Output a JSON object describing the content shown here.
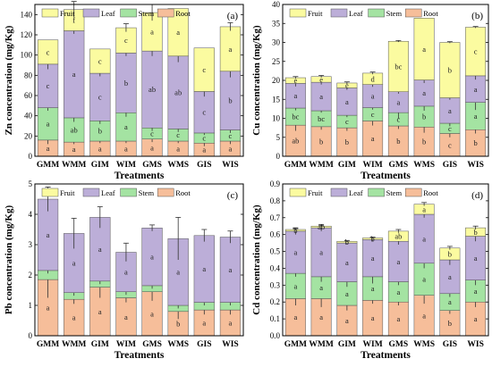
{
  "figure": {
    "segment_colors": {
      "Root": "#f6be9a",
      "Stem": "#a4e3a2",
      "Leaf": "#bcaed8",
      "Fruit": "#fbfba0"
    },
    "edge_color": "#555555"
  },
  "chart_data": [
    {
      "type": "bar",
      "stacked": true,
      "panel_label": "(a)",
      "ylabel": "Zn concentration (mg/Kg)",
      "xlabel": "Treatments",
      "ylim": [
        0,
        150
      ],
      "yticks": [
        "0",
        "20",
        "40",
        "60",
        "80",
        "100",
        "120",
        "140"
      ],
      "yticks_values": [
        0,
        20,
        40,
        60,
        80,
        100,
        120,
        140
      ],
      "legend": [
        "Fruit",
        "Leaf",
        "Stem",
        "Root"
      ],
      "legend_position": "top-left",
      "categories": [
        "GMM",
        "WMM",
        "GIM",
        "WIM",
        "GMS",
        "WMS",
        "GIS",
        "WIS"
      ],
      "series": [
        {
          "name": "Root",
          "values": [
            16,
            14,
            15,
            15,
            17,
            15,
            13,
            15
          ],
          "errors": [
            4,
            2,
            2,
            2,
            3,
            2,
            3,
            3
          ],
          "letters": [
            "a",
            "a",
            "a",
            "a",
            "a",
            "a",
            "a",
            "a"
          ]
        },
        {
          "name": "Stem",
          "values": [
            32,
            24,
            20,
            28,
            11,
            12,
            10,
            11
          ],
          "errors": [
            3,
            4,
            3,
            4,
            3,
            3,
            2,
            3
          ],
          "letters": [
            "a",
            "ab",
            "b",
            "a",
            "c",
            "c",
            "c",
            "c"
          ]
        },
        {
          "name": "Leaf",
          "values": [
            43,
            86,
            47,
            59,
            76,
            72,
            41,
            58
          ],
          "errors": [
            5,
            3,
            3,
            3,
            5,
            6,
            5,
            6
          ],
          "letters": [
            "c",
            "a",
            "c",
            "b",
            "ab",
            "ab",
            "c",
            "b"
          ]
        },
        {
          "name": "Fruit",
          "values": [
            24,
            21,
            24,
            25,
            38,
            47,
            43,
            44
          ],
          "errors": [
            0,
            8,
            0,
            4,
            8,
            0,
            0,
            4
          ],
          "letters": [
            "c",
            "f",
            "c",
            "c",
            "a",
            "a",
            "c",
            "a"
          ]
        }
      ]
    },
    {
      "type": "bar",
      "stacked": true,
      "panel_label": "(b)",
      "ylabel": "Cu concentration (mg/Kg)",
      "xlabel": "Treatments",
      "ylim": [
        0,
        40
      ],
      "yticks": [
        "0",
        "5",
        "10",
        "15",
        "20",
        "25",
        "30",
        "35",
        "40"
      ],
      "yticks_values": [
        0,
        5,
        10,
        15,
        20,
        25,
        30,
        35,
        40
      ],
      "legend": [
        "Fruit",
        "Leaf",
        "Stem",
        "Root"
      ],
      "legend_position": "top-left",
      "categories": [
        "GMM",
        "WMM",
        "GIM",
        "WIM",
        "GMS",
        "WMS",
        "GIS",
        "WIS"
      ],
      "series": [
        {
          "name": "Root",
          "values": [
            8.2,
            7.8,
            7.5,
            9.3,
            8.0,
            7.7,
            6.0,
            7.0
          ],
          "errors": [
            1.5,
            0.8,
            0.8,
            1.2,
            0.8,
            1.5,
            1.0,
            1.0
          ],
          "letters": [
            "ab",
            "b",
            "b",
            "a",
            "b",
            "b",
            "c",
            "b"
          ]
        },
        {
          "name": "Stem",
          "values": [
            4.5,
            4.2,
            3.3,
            3.5,
            3.5,
            5.5,
            2.7,
            7.2
          ],
          "errors": [
            0.6,
            0.5,
            0.5,
            0.5,
            1.5,
            1.2,
            0.8,
            2.0
          ],
          "letters": [
            "bc",
            "bc",
            "c",
            "c",
            "c",
            "b",
            "c",
            "a"
          ]
        },
        {
          "name": "Leaf",
          "values": [
            6.5,
            7.5,
            7.2,
            6.1,
            5.5,
            6.9,
            6.7,
            7.0
          ],
          "errors": [
            0.8,
            0.6,
            0.5,
            0.6,
            0.5,
            0.8,
            0.5,
            1.0
          ],
          "letters": [
            "a",
            "a",
            "a",
            "a",
            "a",
            "a",
            "a",
            "a"
          ]
        },
        {
          "name": "Fruit",
          "values": [
            1.5,
            1.5,
            1.3,
            3.0,
            13.3,
            16.3,
            14.6,
            12.8
          ],
          "errors": [
            0.3,
            0.3,
            0.3,
            0.3,
            0.2,
            0,
            0.2,
            0.2
          ],
          "letters": [
            "e",
            "e",
            "e",
            "d",
            "bc",
            "a",
            "b",
            "c"
          ]
        }
      ]
    },
    {
      "type": "bar",
      "stacked": true,
      "panel_label": "(c)",
      "ylabel": "Pb concentration (mg/Kg)",
      "xlabel": "Treatments",
      "ylim": [
        0,
        5
      ],
      "yticks": [
        "0",
        "1",
        "2",
        "3",
        "4",
        "5"
      ],
      "yticks_values": [
        0,
        1,
        2,
        3,
        4,
        5
      ],
      "legend": [
        "Fruit",
        "Leaf",
        "Stem",
        "Root"
      ],
      "legend_position": "top-left",
      "categories": [
        "GMM",
        "WMM",
        "GIM",
        "WIM",
        "GMS",
        "WMS",
        "GIS",
        "WIS"
      ],
      "series": [
        {
          "name": "Root",
          "values": [
            1.85,
            1.2,
            1.6,
            1.25,
            1.45,
            0.8,
            0.85,
            0.85
          ],
          "errors": [
            0.6,
            0.15,
            0.35,
            0.15,
            0.3,
            0.25,
            0.15,
            0.15
          ],
          "letters": [
            "a",
            "a",
            "a",
            "a",
            "a",
            "b",
            "a",
            "a"
          ]
        },
        {
          "name": "Stem",
          "values": [
            0.3,
            0.22,
            0.2,
            0.2,
            0.2,
            0.2,
            0.25,
            0.25
          ],
          "errors": [
            0.1,
            0.1,
            0.1,
            0.1,
            0.1,
            0.1,
            0.1,
            0.1
          ],
          "letters": [
            "",
            "",
            "",
            "",
            "",
            "",
            "",
            ""
          ]
        },
        {
          "name": "Leaf",
          "values": [
            2.35,
            1.95,
            2.1,
            1.3,
            1.9,
            2.2,
            2.2,
            2.15
          ],
          "errors": [
            0.4,
            0.5,
            0.35,
            0.3,
            0.1,
            0.7,
            0.2,
            0.2
          ],
          "letters": [
            "a",
            "a",
            "a",
            "a",
            "a",
            "a",
            "a",
            "a"
          ]
        }
      ]
    },
    {
      "type": "bar",
      "stacked": true,
      "panel_label": "(d)",
      "ylabel": "Cd concentration (mg/Kg)",
      "xlabel": "Treatments",
      "ylim": [
        0,
        0.9
      ],
      "yticks": [
        "0.0",
        "0.1",
        "0.2",
        "0.3",
        "0.4",
        "0.5",
        "0.6",
        "0.7",
        "0.8",
        "0.9"
      ],
      "yticks_values": [
        0,
        0.1,
        0.2,
        0.3,
        0.4,
        0.5,
        0.6,
        0.7,
        0.8,
        0.9
      ],
      "legend": [
        "Fruit",
        "Leaf",
        "Stem",
        "Root"
      ],
      "legend_position": "top-left",
      "categories": [
        "GMM",
        "WMM",
        "GIM",
        "WIM",
        "GMS",
        "WMS",
        "GIS",
        "WIS"
      ],
      "series": [
        {
          "name": "Root",
          "values": [
            0.22,
            0.22,
            0.18,
            0.21,
            0.2,
            0.24,
            0.15,
            0.2
          ],
          "errors": [
            0.04,
            0.05,
            0.03,
            0.02,
            0.02,
            0.05,
            0.02,
            0.03
          ],
          "letters": [
            "a",
            "a",
            "a",
            "a",
            "a",
            "a",
            "b",
            "a"
          ]
        },
        {
          "name": "Stem",
          "values": [
            0.15,
            0.13,
            0.14,
            0.14,
            0.12,
            0.19,
            0.1,
            0.13
          ],
          "errors": [
            0.02,
            0.03,
            0.03,
            0.04,
            0.02,
            0.03,
            0.02,
            0.03
          ],
          "letters": [
            "a",
            "a",
            "a",
            "a",
            "a",
            "a",
            "a",
            "a"
          ]
        },
        {
          "name": "Leaf",
          "values": [
            0.25,
            0.29,
            0.23,
            0.22,
            0.24,
            0.29,
            0.2,
            0.26
          ],
          "errors": [
            0.02,
            0.02,
            0.01,
            0.01,
            0.02,
            0.02,
            0.03,
            0.03
          ],
          "letters": [
            "a",
            "a",
            "a",
            "a",
            "a",
            "a",
            "a",
            "a"
          ]
        },
        {
          "name": "Fruit",
          "values": [
            0.01,
            0.01,
            0.01,
            0.01,
            0.06,
            0.06,
            0.07,
            0.05
          ],
          "errors": [
            0.005,
            0.005,
            0.005,
            0.005,
            0.01,
            0.01,
            0.01,
            0.01
          ],
          "letters": [
            "b",
            "ab",
            "b",
            "b",
            "ab",
            "a",
            "b",
            "b"
          ]
        }
      ]
    }
  ]
}
